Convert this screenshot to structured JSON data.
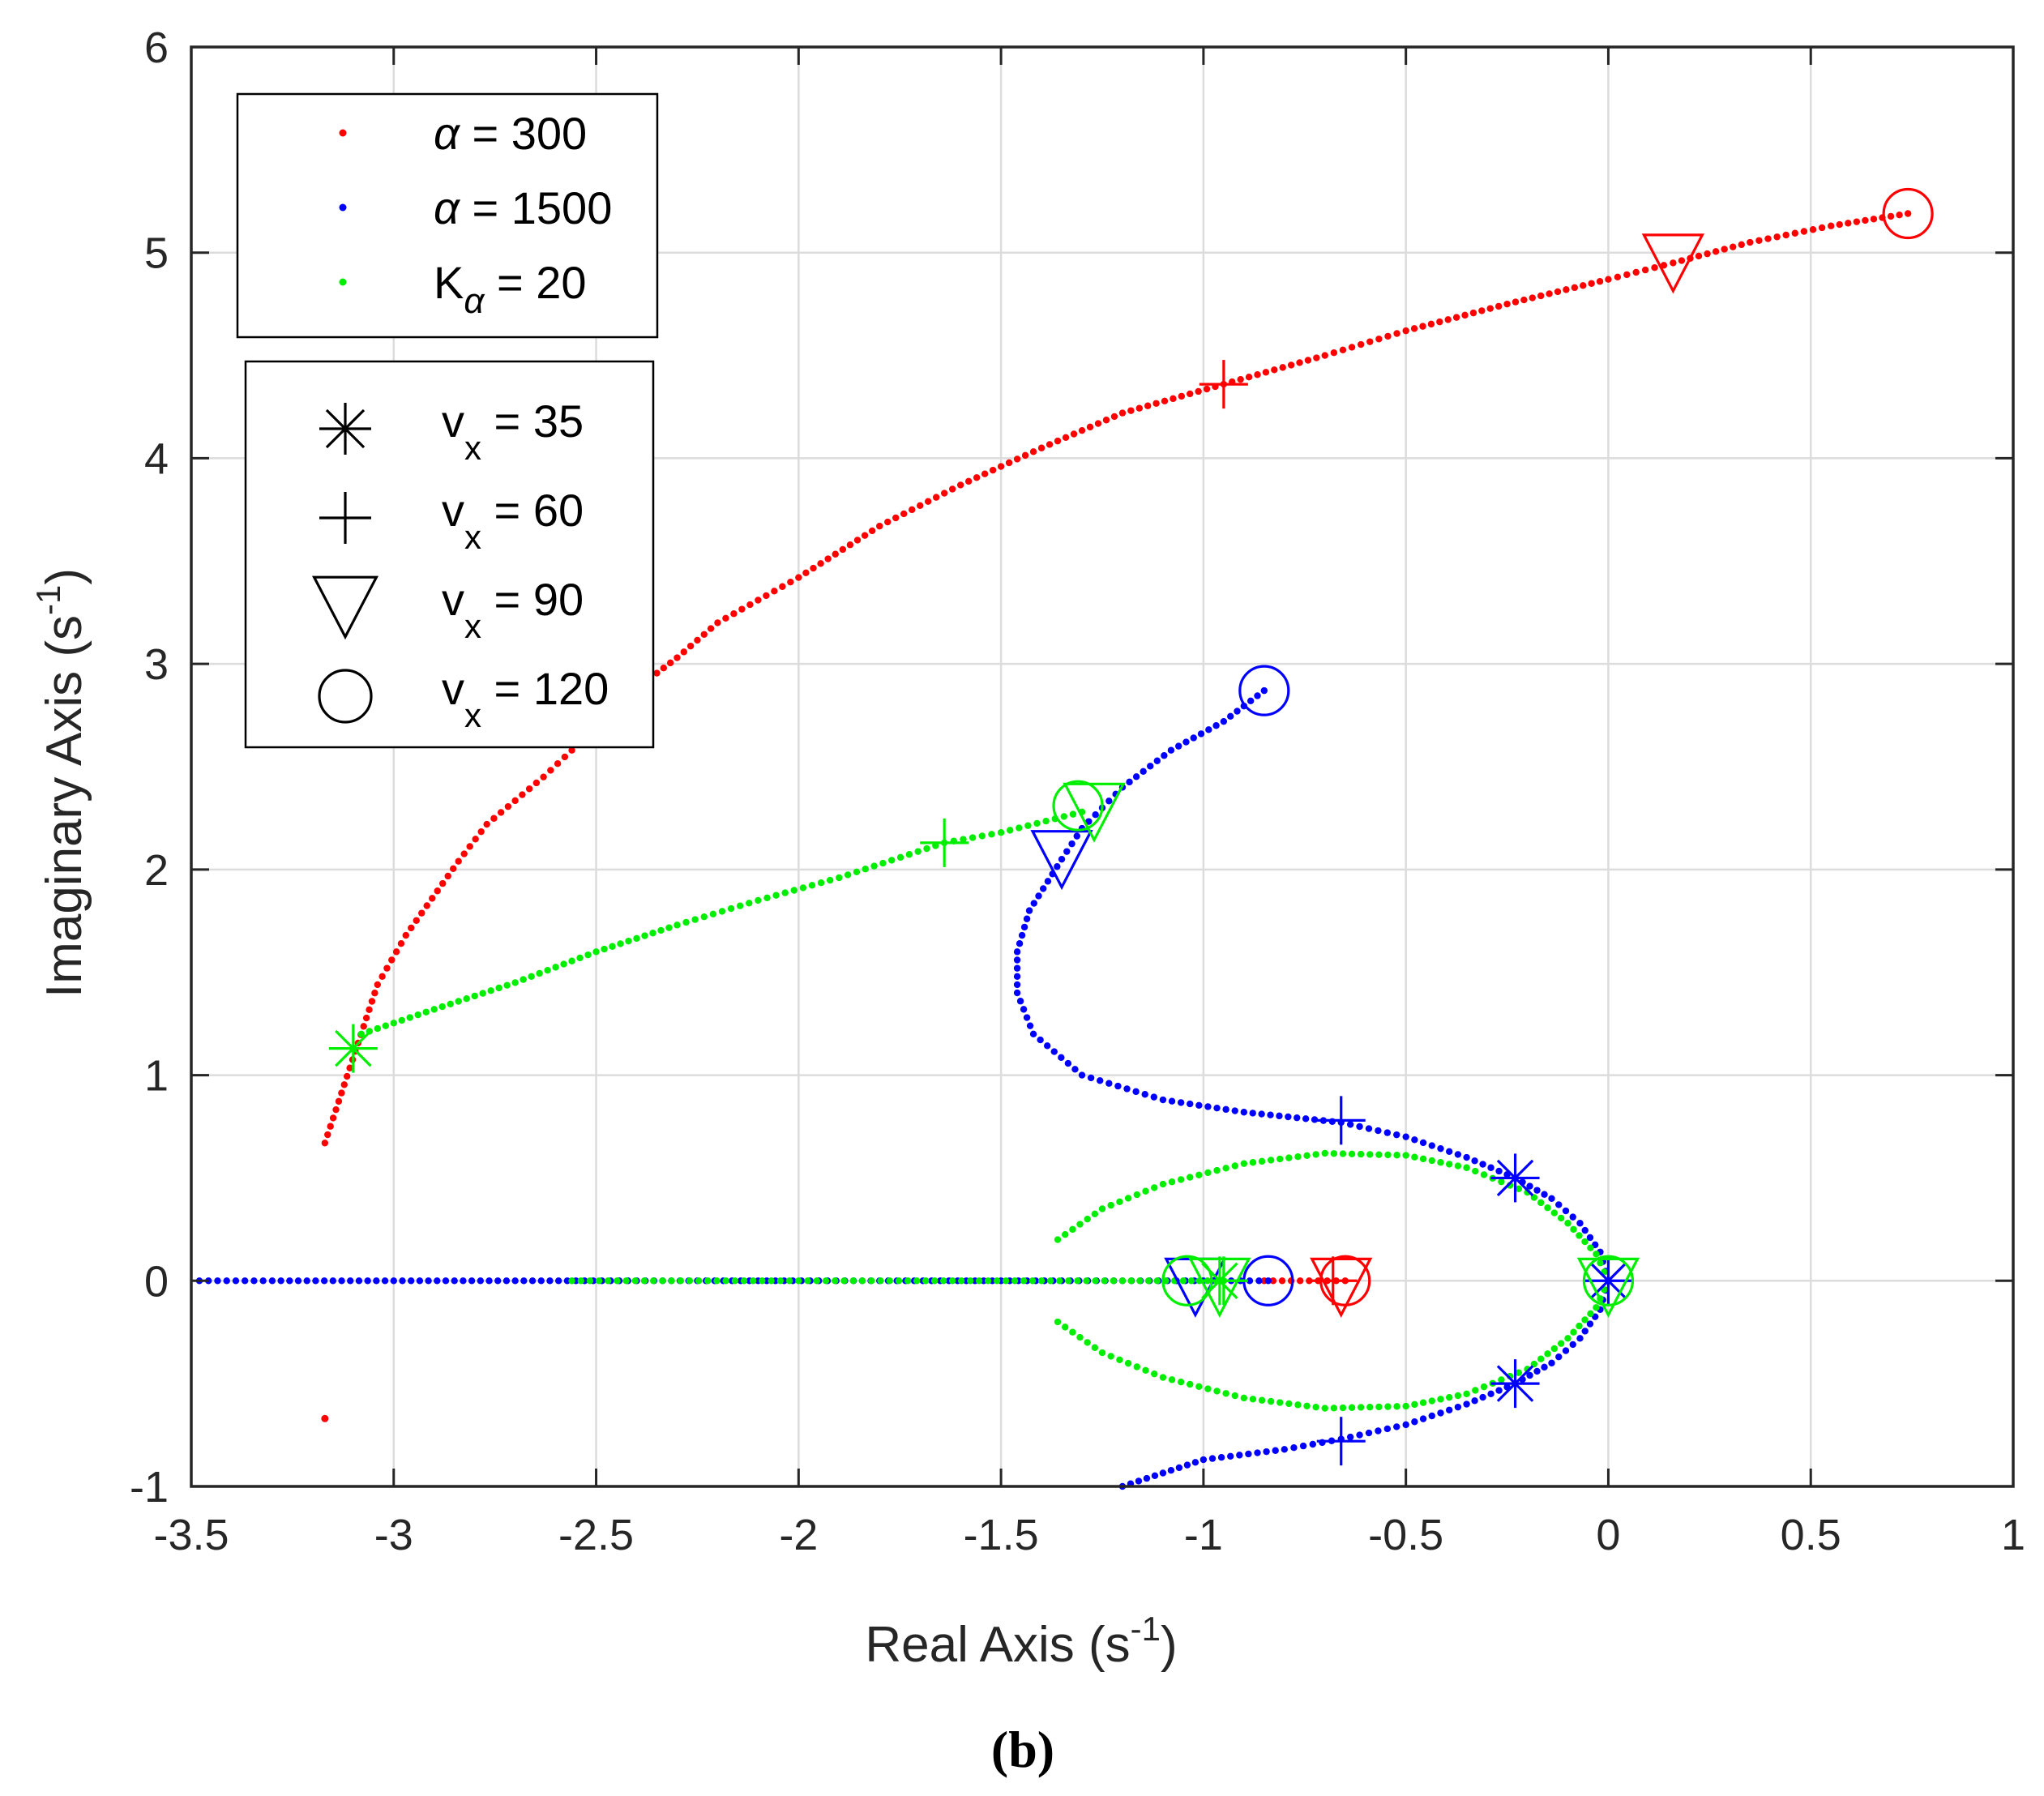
{
  "chart_data": {
    "type": "scatter",
    "title": "",
    "caption": "(b)",
    "xlabel": "Real Axis (s",
    "xlabel_sup": "-1",
    "xlabel_end": ")",
    "ylabel": "Imaginary Axis (s",
    "ylabel_sup": "-1",
    "ylabel_end": ")",
    "xlim": [
      -3.5,
      1
    ],
    "ylim": [
      -1,
      6
    ],
    "grid": true,
    "x_ticks": [
      -3.5,
      -3,
      -2.5,
      -2,
      -1.5,
      -1,
      -0.5,
      0,
      0.5,
      1
    ],
    "x_tick_labels": [
      "-3.5",
      "-3",
      "-2.5",
      "-2",
      "-1.5",
      "-1",
      "-0.5",
      "0",
      "0.5",
      "1"
    ],
    "y_ticks": [
      -1,
      0,
      1,
      2,
      3,
      4,
      5,
      6
    ],
    "y_tick_labels": [
      "-1",
      "0",
      "1",
      "2",
      "3",
      "4",
      "5",
      "6"
    ],
    "colors": {
      "red": "#ff0000",
      "blue": "#0000ff",
      "green": "#00ee00",
      "axis": "#262626",
      "grid": "#dcdcdc"
    },
    "series_legend": {
      "placement": "top-left",
      "entries": [
        {
          "symbol": "α",
          "label": " = 300",
          "color": "#ff0000"
        },
        {
          "symbol": "α",
          "label": " = 1500",
          "color": "#0000ff"
        },
        {
          "symbol": "K",
          "sub": "α",
          "label": " = 20",
          "color": "#00ee00"
        }
      ]
    },
    "marker_legend": {
      "placement": "top-left",
      "entries": [
        {
          "marker": "asterisk",
          "label": "v",
          "sub": "x",
          "value": " = 35"
        },
        {
          "marker": "plus",
          "label": "v",
          "sub": "x",
          "value": " = 60"
        },
        {
          "marker": "triangle-down",
          "label": "v",
          "sub": "x",
          "value": " = 90"
        },
        {
          "marker": "circle",
          "label": "v",
          "sub": "x",
          "value": " = 120"
        }
      ]
    },
    "series": [
      {
        "legend_index": 0,
        "color": "#ff0000",
        "branches": [
          {
            "points": [
              [
                -3.17,
                0.67
              ],
              [
                -3.04,
                1.44
              ],
              [
                -2.97,
                1.68
              ],
              [
                -2.84,
                2.04
              ],
              [
                -2.77,
                2.22
              ],
              [
                -2.63,
                2.45
              ],
              [
                -2.56,
                2.58
              ],
              [
                -2.5,
                2.72
              ],
              [
                -2.4,
                2.88
              ],
              [
                -2.3,
                3.03
              ],
              [
                -2.2,
                3.2
              ],
              [
                -2.0,
                3.42
              ],
              [
                -1.8,
                3.67
              ],
              [
                -1.6,
                3.87
              ],
              [
                -1.4,
                4.05
              ],
              [
                -1.2,
                4.22
              ],
              [
                -0.95,
                4.36
              ],
              [
                -0.7,
                4.5
              ],
              [
                -0.5,
                4.62
              ],
              [
                -0.25,
                4.75
              ],
              [
                0.0,
                4.87
              ],
              [
                0.16,
                4.95
              ],
              [
                0.35,
                5.05
              ],
              [
                0.55,
                5.13
              ],
              [
                0.74,
                5.19
              ]
            ]
          },
          {
            "points": [
              [
                -3.17,
                -0.67
              ]
            ]
          },
          {
            "points": [
              [
                -0.85,
                0.0
              ],
              [
                -0.65,
                0.0
              ]
            ]
          }
        ]
      },
      {
        "legend_index": 1,
        "color": "#0000ff",
        "branches": [
          {
            "points": [
              [
                -0.85,
                2.87
              ],
              [
                -0.95,
                2.72
              ],
              [
                -1.08,
                2.58
              ],
              [
                -1.2,
                2.4
              ],
              [
                -1.3,
                2.2
              ],
              [
                -1.35,
                2.05
              ],
              [
                -1.43,
                1.8
              ],
              [
                -1.46,
                1.6
              ],
              [
                -1.46,
                1.4
              ],
              [
                -1.42,
                1.2
              ],
              [
                -1.3,
                1.0
              ],
              [
                -1.1,
                0.88
              ],
              [
                -0.9,
                0.82
              ],
              [
                -0.66,
                0.77
              ],
              [
                -0.5,
                0.7
              ],
              [
                -0.35,
                0.6
              ],
              [
                -0.23,
                0.5
              ],
              [
                -0.14,
                0.4
              ],
              [
                -0.07,
                0.28
              ],
              [
                -0.02,
                0.14
              ],
              [
                0.0,
                0.0
              ]
            ]
          },
          {
            "points": [
              [
                -1.2,
                -1.0
              ],
              [
                -1.0,
                -0.87
              ],
              [
                -0.8,
                -0.82
              ],
              [
                -0.66,
                -0.77
              ],
              [
                -0.5,
                -0.7
              ],
              [
                -0.35,
                -0.6
              ],
              [
                -0.23,
                -0.5
              ],
              [
                -0.14,
                -0.4
              ],
              [
                -0.07,
                -0.28
              ],
              [
                -0.02,
                -0.14
              ],
              [
                0.0,
                0.0
              ]
            ]
          },
          {
            "points": [
              [
                -3.48,
                0.0
              ],
              [
                -3.3,
                0.0
              ],
              [
                -3.0,
                0.0
              ],
              [
                -2.7,
                0.0
              ],
              [
                -2.4,
                0.0
              ],
              [
                -2.1,
                0.0
              ],
              [
                -1.8,
                0.0
              ],
              [
                -1.5,
                0.0
              ],
              [
                -1.2,
                0.0
              ],
              [
                -1.0,
                0.0
              ],
              [
                -0.84,
                0.0
              ]
            ]
          }
        ]
      },
      {
        "legend_index": 2,
        "color": "#00ee00",
        "branches": [
          {
            "points": [
              [
                -3.08,
                1.2
              ],
              [
                -2.9,
                1.32
              ],
              [
                -2.7,
                1.45
              ],
              [
                -2.5,
                1.6
              ],
              [
                -2.3,
                1.73
              ],
              [
                -2.1,
                1.85
              ],
              [
                -1.9,
                1.96
              ],
              [
                -1.64,
                2.13
              ],
              [
                -1.5,
                2.18
              ],
              [
                -1.3,
                2.28
              ]
            ]
          },
          {
            "points": [
              [
                -1.36,
                0.2
              ],
              [
                -1.25,
                0.35
              ],
              [
                -1.1,
                0.47
              ],
              [
                -0.9,
                0.57
              ],
              [
                -0.7,
                0.62
              ],
              [
                -0.5,
                0.61
              ],
              [
                -0.35,
                0.55
              ],
              [
                -0.2,
                0.43
              ],
              [
                -0.1,
                0.28
              ],
              [
                -0.03,
                0.13
              ],
              [
                0.0,
                0.0
              ]
            ]
          },
          {
            "points": [
              [
                -1.36,
                -0.2
              ],
              [
                -1.25,
                -0.35
              ],
              [
                -1.1,
                -0.47
              ],
              [
                -0.9,
                -0.57
              ],
              [
                -0.7,
                -0.62
              ],
              [
                -0.5,
                -0.61
              ],
              [
                -0.35,
                -0.55
              ],
              [
                -0.2,
                -0.43
              ],
              [
                -0.1,
                -0.28
              ],
              [
                -0.03,
                -0.13
              ],
              [
                0.0,
                0.0
              ]
            ]
          },
          {
            "points": [
              [
                -2.56,
                0.0
              ],
              [
                -2.09,
                0.0
              ],
              [
                -1.73,
                0.0
              ],
              [
                -1.4,
                0.0
              ],
              [
                -1.2,
                0.0
              ],
              [
                -1.05,
                0.0
              ],
              [
                -0.95,
                0.0
              ]
            ]
          }
        ]
      }
    ],
    "markers": [
      {
        "color": "#ff0000",
        "marker": "plus",
        "x": -0.95,
        "y": 4.36
      },
      {
        "color": "#ff0000",
        "marker": "triangle-down",
        "x": 0.16,
        "y": 4.95
      },
      {
        "color": "#ff0000",
        "marker": "circle",
        "x": 0.74,
        "y": 5.19
      },
      {
        "color": "#ff0000",
        "marker": "plus",
        "x": -0.68,
        "y": 0.0
      },
      {
        "color": "#ff0000",
        "marker": "triangle-down",
        "x": -0.66,
        "y": -0.03
      },
      {
        "color": "#ff0000",
        "marker": "circle",
        "x": -0.65,
        "y": 0.0
      },
      {
        "color": "#0000ff",
        "marker": "circle",
        "x": -0.85,
        "y": 2.87
      },
      {
        "color": "#0000ff",
        "marker": "triangle-down",
        "x": -1.35,
        "y": 2.05
      },
      {
        "color": "#0000ff",
        "marker": "plus",
        "x": -0.66,
        "y": 0.78
      },
      {
        "color": "#0000ff",
        "marker": "asterisk",
        "x": -0.23,
        "y": 0.5
      },
      {
        "color": "#0000ff",
        "marker": "plus",
        "x": -0.66,
        "y": -0.78
      },
      {
        "color": "#0000ff",
        "marker": "asterisk",
        "x": -0.23,
        "y": -0.5
      },
      {
        "color": "#0000ff",
        "marker": "circle",
        "x": -0.84,
        "y": 0.0
      },
      {
        "color": "#0000ff",
        "marker": "triangle-down",
        "x": -1.02,
        "y": -0.03
      },
      {
        "color": "#0000ff",
        "marker": "asterisk",
        "x": 0.0,
        "y": 0.0
      },
      {
        "color": "#00ee00",
        "marker": "asterisk",
        "x": -3.1,
        "y": 1.13
      },
      {
        "color": "#00ee00",
        "marker": "plus",
        "x": -1.64,
        "y": 2.13
      },
      {
        "color": "#00ee00",
        "marker": "circle",
        "x": -1.31,
        "y": 2.31
      },
      {
        "color": "#00ee00",
        "marker": "triangle-down",
        "x": -1.27,
        "y": 2.28
      },
      {
        "color": "#00ee00",
        "marker": "circle",
        "x": -1.04,
        "y": 0.0
      },
      {
        "color": "#00ee00",
        "marker": "asterisk",
        "x": -0.96,
        "y": 0.0
      },
      {
        "color": "#00ee00",
        "marker": "triangle-down",
        "x": -0.96,
        "y": -0.03
      },
      {
        "color": "#00ee00",
        "marker": "plus",
        "x": -0.95,
        "y": 0.0
      },
      {
        "color": "#00ee00",
        "marker": "circle",
        "x": 0.0,
        "y": 0.0
      },
      {
        "color": "#00ee00",
        "marker": "triangle-down",
        "x": 0.0,
        "y": -0.03
      }
    ]
  }
}
